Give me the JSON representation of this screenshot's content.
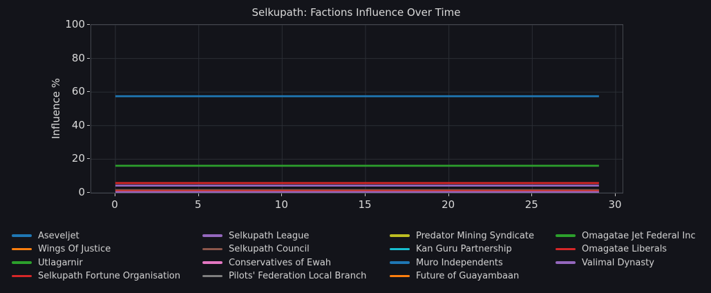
{
  "colors": {
    "background": "#13141a",
    "text": "#d9d9d9",
    "grid": "#2b2e35",
    "spine": "#44474e"
  },
  "chart_data": {
    "type": "line",
    "title": "Selkupath: Factions Influence Over Time",
    "xlabel": "",
    "ylabel": "Influence %",
    "x_ticks": [
      0,
      5,
      10,
      15,
      20,
      25,
      30
    ],
    "y_ticks": [
      0,
      20,
      40,
      60,
      80,
      100
    ],
    "ylim": [
      0,
      100
    ],
    "xlim": [
      -1.45,
      30.45
    ],
    "x_start": 0,
    "x_end": 29,
    "grid": true,
    "legend_position": "below plot, 4 columns",
    "note": "All series are flat (constant influence) from x=0 to x=29; small factions overlap near 0-1%",
    "series": [
      {
        "name": "Aseveljet",
        "color": "#1f77b4",
        "value": 57.5
      },
      {
        "name": "Wings Of Justice",
        "color": "#ff7f0e",
        "value": 1.0
      },
      {
        "name": "Utlagarnir",
        "color": "#2ca02c",
        "value": 16.1
      },
      {
        "name": "Selkupath Fortune Organisation",
        "color": "#d62728",
        "value": 5.8
      },
      {
        "name": "Selkupath League",
        "color": "#9467bd",
        "value": 4.3
      },
      {
        "name": "Selkupath Council",
        "color": "#8c564b",
        "value": 1.6
      },
      {
        "name": "Conservatives of Ewah",
        "color": "#e377c2",
        "value": 1.0
      },
      {
        "name": "Pilots' Federation Local Branch",
        "color": "#7f7f7f",
        "value": 0.0
      },
      {
        "name": "Predator Mining Syndicate",
        "color": "#bcbd22",
        "value": 1.0
      },
      {
        "name": "Kan Guru Partnership",
        "color": "#17becf",
        "value": 1.0
      },
      {
        "name": "Muro Independents",
        "color": "#1f77b4",
        "value": 1.0
      },
      {
        "name": "Future of Guayambaan",
        "color": "#ff7f0e",
        "value": 1.0
      },
      {
        "name": "Omagatae Jet Federal Inc",
        "color": "#2ca02c",
        "value": 1.0
      },
      {
        "name": "Omagatae Liberals",
        "color": "#d62728",
        "value": 1.0
      },
      {
        "name": "Valimal Dynasty",
        "color": "#9467bd",
        "value": 0.4
      }
    ]
  }
}
